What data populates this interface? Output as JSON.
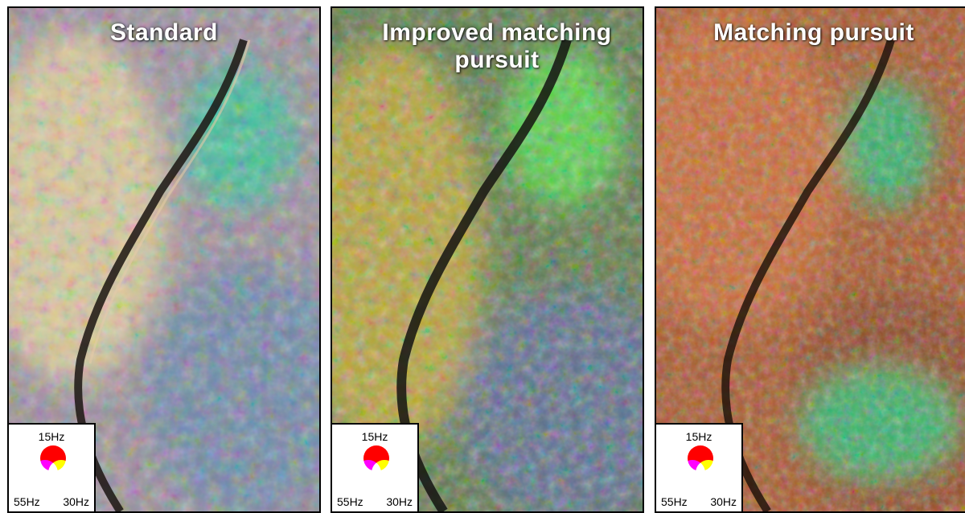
{
  "panels": [
    {
      "title": "Standard",
      "legend": {
        "top": "15Hz",
        "bottom_left": "55Hz",
        "bottom_right": "30Hz"
      },
      "palette": {
        "base": "#9a8f9c",
        "left": "#d9c89a",
        "right": "#6f88a6",
        "channel": "#3fbf9a"
      }
    },
    {
      "title": "Improved matching pursuit",
      "legend": {
        "top": "15Hz",
        "bottom_left": "55Hz",
        "bottom_right": "30Hz"
      },
      "palette": {
        "base": "#5f7a4a",
        "left": "#b6a43b",
        "right": "#5d6f8c",
        "channel": "#57d24a"
      }
    },
    {
      "title": "Matching pursuit",
      "legend": {
        "top": "15Hz",
        "bottom_left": "55Hz",
        "bottom_right": "30Hz"
      },
      "palette": {
        "base": "#a9582c",
        "left": "#c86a35",
        "right": "#8e4a25",
        "channel": "#3ab06a"
      }
    }
  ]
}
